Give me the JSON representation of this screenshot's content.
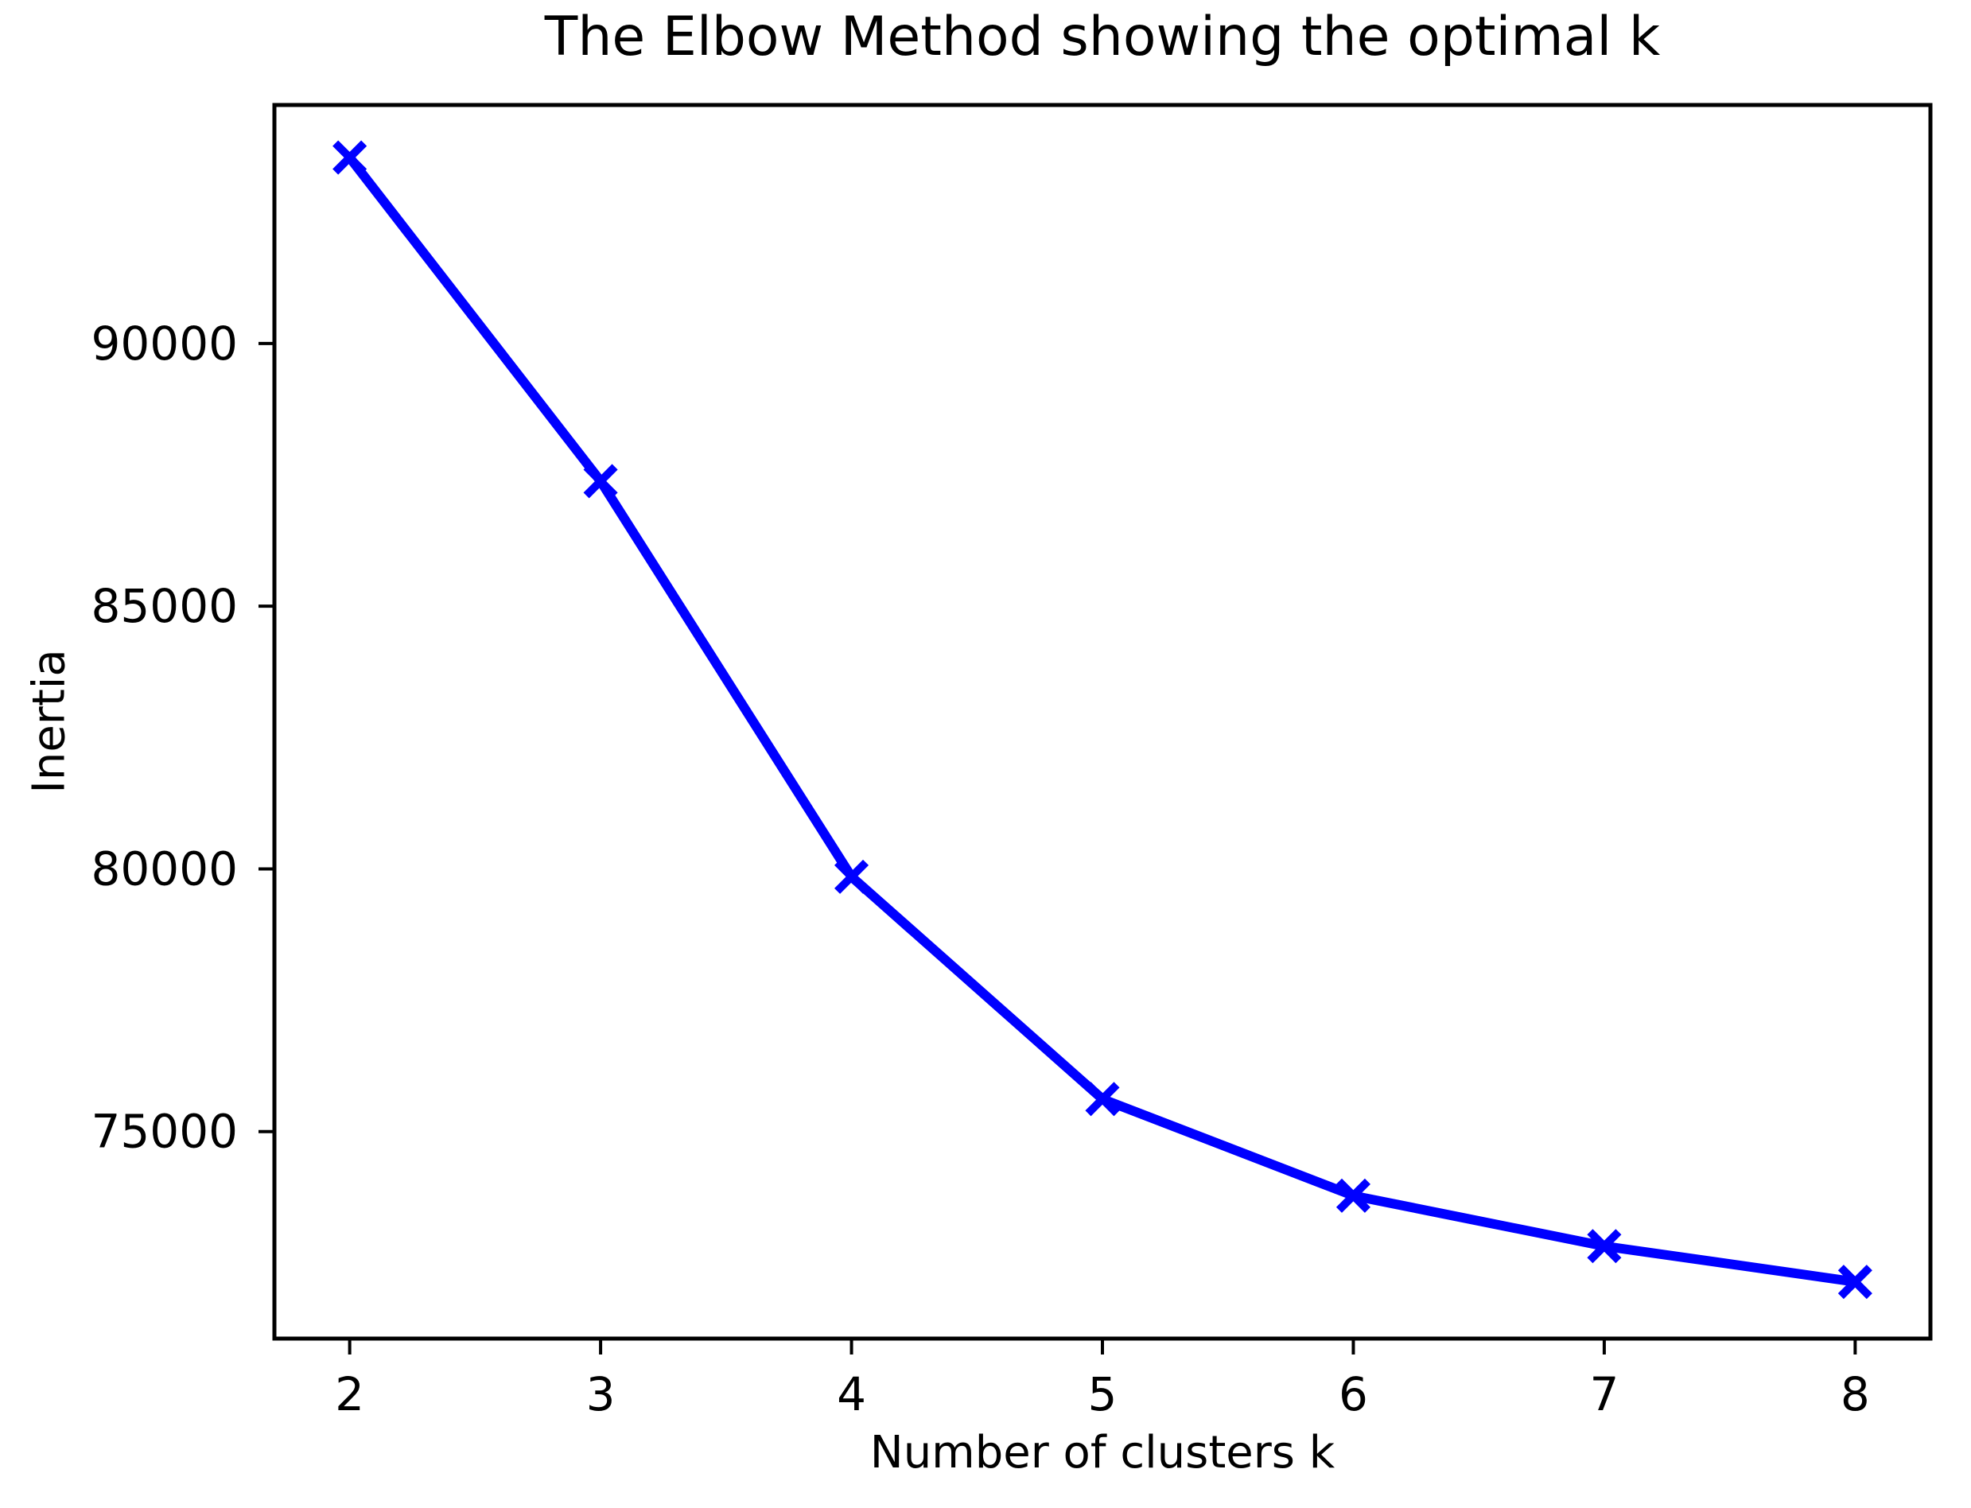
{
  "chart_data": {
    "type": "line",
    "title": "The Elbow Method showing the optimal k",
    "xlabel": "Number of clusters k",
    "ylabel": "Inertia",
    "x": [
      2,
      3,
      4,
      5,
      6,
      7,
      8
    ],
    "y": [
      93540,
      87380,
      79850,
      75620,
      73780,
      72820,
      72140
    ],
    "series": [
      {
        "name": "Inertia",
        "x": [
          2,
          3,
          4,
          5,
          6,
          7,
          8
        ],
        "y": [
          93540,
          87380,
          79850,
          75620,
          73780,
          72820,
          72140
        ]
      }
    ],
    "xticks": {
      "values": [
        2,
        3,
        4,
        5,
        6,
        7,
        8
      ],
      "labels": [
        "2",
        "3",
        "4",
        "5",
        "6",
        "7",
        "8"
      ]
    },
    "yticks": {
      "values": [
        75000,
        80000,
        85000,
        90000
      ],
      "labels": [
        "75000",
        "80000",
        "85000",
        "90000"
      ]
    },
    "xlim": [
      1.7,
      8.3
    ],
    "ylim": [
      71060,
      94540
    ],
    "grid": false,
    "legend": "none",
    "marker": "x",
    "line_color": "#0000ff",
    "axis_color": "#000000",
    "text_color": "#000000",
    "background_color": "#ffffff"
  }
}
